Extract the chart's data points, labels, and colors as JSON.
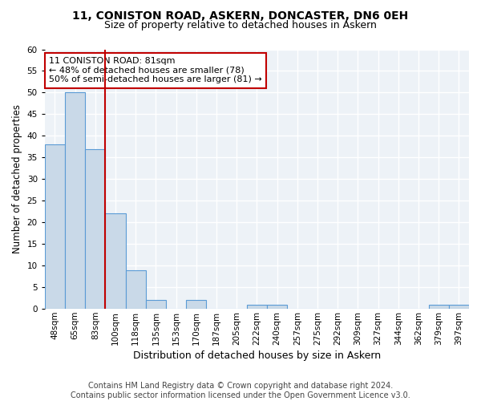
{
  "title1": "11, CONISTON ROAD, ASKERN, DONCASTER, DN6 0EH",
  "title2": "Size of property relative to detached houses in Askern",
  "xlabel": "Distribution of detached houses by size in Askern",
  "ylabel": "Number of detached properties",
  "categories": [
    "48sqm",
    "65sqm",
    "83sqm",
    "100sqm",
    "118sqm",
    "135sqm",
    "153sqm",
    "170sqm",
    "187sqm",
    "205sqm",
    "222sqm",
    "240sqm",
    "257sqm",
    "275sqm",
    "292sqm",
    "309sqm",
    "327sqm",
    "344sqm",
    "362sqm",
    "379sqm",
    "397sqm"
  ],
  "values": [
    38,
    50,
    37,
    22,
    9,
    2,
    0,
    2,
    0,
    0,
    1,
    1,
    0,
    0,
    0,
    0,
    0,
    0,
    0,
    1,
    1
  ],
  "bar_color": "#c9d9e8",
  "bar_edge_color": "#5b9bd5",
  "vline_x_index": 2,
  "vline_color": "#c00000",
  "annotation_text": "11 CONISTON ROAD: 81sqm\n← 48% of detached houses are smaller (78)\n50% of semi-detached houses are larger (81) →",
  "annotation_box_color": "#ffffff",
  "annotation_box_edge_color": "#c00000",
  "ylim": [
    0,
    60
  ],
  "yticks": [
    0,
    5,
    10,
    15,
    20,
    25,
    30,
    35,
    40,
    45,
    50,
    55,
    60
  ],
  "footer_text": "Contains HM Land Registry data © Crown copyright and database right 2024.\nContains public sector information licensed under the Open Government Licence v3.0.",
  "bg_color": "#edf2f7",
  "grid_color": "#ffffff",
  "title1_fontsize": 10,
  "title2_fontsize": 9,
  "xlabel_fontsize": 9,
  "ylabel_fontsize": 8.5,
  "footer_fontsize": 7,
  "annotation_fontsize": 8,
  "tick_fontsize": 7.5
}
